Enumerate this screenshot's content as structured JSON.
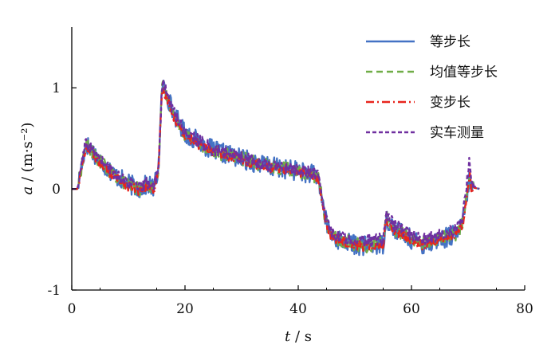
{
  "chart_data": {
    "type": "line",
    "x_axis": {
      "label_var": "t",
      "label_sep": " / ",
      "label_unit": "s",
      "range": [
        0,
        80
      ],
      "ticks": [
        0,
        20,
        40,
        60,
        80
      ]
    },
    "y_axis": {
      "label_var": "a",
      "label_sep": " / ",
      "label_unit": "(m·s⁻²)",
      "range": [
        -1,
        1.6
      ],
      "ticks": [
        -1,
        0,
        1
      ]
    },
    "grid": false,
    "legend_position": "top-right",
    "series": [
      {
        "name": "等步长",
        "color": "#4472C4",
        "dash": "solid",
        "noise": 0.1,
        "x": [
          0,
          1,
          2,
          2.5,
          4,
          6,
          8,
          10,
          12,
          13.5,
          14.5,
          15.3,
          16,
          17,
          18,
          20,
          25,
          30,
          35,
          40,
          42,
          43.5,
          44.2,
          45,
          46,
          48,
          50,
          52,
          54,
          55,
          55.5,
          57,
          60,
          62,
          65,
          68,
          69,
          70.3,
          70.5,
          72
        ],
        "y": [
          0,
          0,
          0.3,
          0.45,
          0.35,
          0.22,
          0.12,
          0.05,
          0.0,
          0.05,
          0.0,
          0.2,
          1.05,
          0.9,
          0.75,
          0.55,
          0.38,
          0.3,
          0.22,
          0.18,
          0.15,
          0.12,
          -0.1,
          -0.35,
          -0.48,
          -0.52,
          -0.55,
          -0.57,
          -0.55,
          -0.55,
          -0.28,
          -0.4,
          -0.5,
          -0.55,
          -0.5,
          -0.45,
          -0.35,
          0.1,
          0.02,
          0.0
        ]
      },
      {
        "name": "均值等步长",
        "color": "#70AD47",
        "dash": "dashed",
        "noise": 0.07,
        "x": [
          0,
          1,
          2,
          2.5,
          4,
          6,
          8,
          10,
          12,
          13.5,
          14.5,
          15.3,
          16,
          17,
          18,
          20,
          25,
          30,
          35,
          40,
          42,
          43.5,
          44.2,
          45,
          46,
          48,
          50,
          52,
          54,
          55,
          55.5,
          57,
          60,
          62,
          65,
          68,
          69,
          70.3,
          70.5,
          72
        ],
        "y": [
          0,
          0,
          0.3,
          0.44,
          0.34,
          0.21,
          0.11,
          0.04,
          0.0,
          0.05,
          0.0,
          0.2,
          1.02,
          0.9,
          0.74,
          0.54,
          0.37,
          0.3,
          0.22,
          0.18,
          0.15,
          0.12,
          -0.1,
          -0.35,
          -0.47,
          -0.51,
          -0.54,
          -0.56,
          -0.54,
          -0.54,
          -0.28,
          -0.4,
          -0.49,
          -0.54,
          -0.49,
          -0.44,
          -0.35,
          0.12,
          0.02,
          0.0
        ]
      },
      {
        "name": "变步长",
        "color": "#E8251E",
        "dash": "dashdot",
        "noise": 0.05,
        "x": [
          0,
          1,
          2,
          2.5,
          4,
          6,
          8,
          10,
          12,
          13.5,
          14.5,
          15.3,
          16,
          17,
          18,
          20,
          25,
          30,
          35,
          40,
          42,
          43.5,
          44.2,
          45,
          46,
          48,
          50,
          52,
          54,
          55,
          55.5,
          57,
          60,
          62,
          65,
          68,
          69,
          70.3,
          70.5,
          72
        ],
        "y": [
          0,
          0,
          0.28,
          0.42,
          0.33,
          0.2,
          0.1,
          0.03,
          -0.02,
          0.04,
          -0.02,
          0.18,
          1.0,
          0.88,
          0.72,
          0.52,
          0.36,
          0.29,
          0.21,
          0.17,
          0.14,
          0.11,
          -0.12,
          -0.36,
          -0.48,
          -0.52,
          -0.55,
          -0.57,
          -0.55,
          -0.56,
          -0.3,
          -0.42,
          -0.5,
          -0.56,
          -0.5,
          -0.45,
          -0.36,
          0.15,
          0.02,
          0.0
        ]
      },
      {
        "name": "实车测量",
        "color": "#7030A0",
        "dash": "shortdash",
        "noise": 0.06,
        "x": [
          0,
          1,
          2,
          2.5,
          4,
          6,
          8,
          10,
          12,
          13.5,
          14.5,
          15.3,
          16,
          17,
          18,
          20,
          25,
          30,
          35,
          40,
          42,
          43.5,
          44.2,
          45,
          46,
          48,
          50,
          52,
          54,
          55,
          55.5,
          57,
          60,
          62,
          65,
          68,
          69,
          70.3,
          70.5,
          72
        ],
        "y": [
          0,
          0,
          0.32,
          0.45,
          0.36,
          0.23,
          0.13,
          0.06,
          0.01,
          0.06,
          0.01,
          0.22,
          1.05,
          0.92,
          0.76,
          0.56,
          0.39,
          0.31,
          0.23,
          0.19,
          0.16,
          0.13,
          -0.08,
          -0.3,
          -0.44,
          -0.48,
          -0.5,
          -0.52,
          -0.5,
          -0.5,
          -0.25,
          -0.36,
          -0.45,
          -0.5,
          -0.46,
          -0.4,
          -0.3,
          0.3,
          0.04,
          0.0
        ]
      }
    ]
  }
}
